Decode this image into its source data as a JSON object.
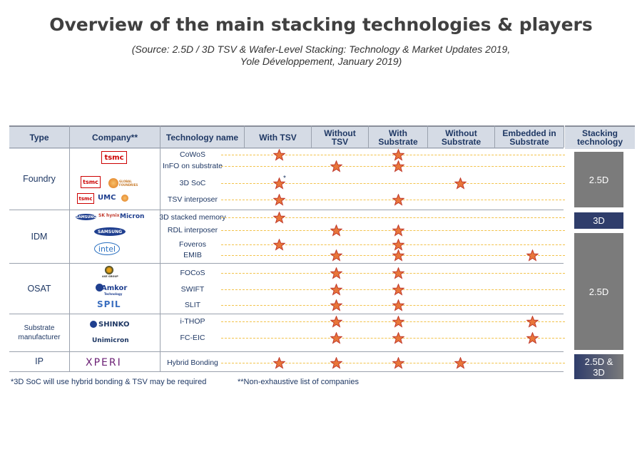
{
  "title": "Overview of the main stacking technologies & players",
  "source": {
    "line1": "(Source: 2.5D / 3D TSV & Wafer-Level Stacking: Technology & Market Updates 2019,",
    "line2": "Yole Développement, January 2019)"
  },
  "headers": {
    "type": "Type",
    "company": "Company**",
    "technology": "Technology name",
    "with_tsv": "With TSV",
    "without_tsv_1": "Without",
    "without_tsv_2": "TSV",
    "with_sub_1": "With",
    "with_sub_2": "Substrate",
    "without_sub_1": "Without",
    "without_sub_2": "Substrate",
    "embedded_1": "Embedded in",
    "embedded_2": "Substrate",
    "stacking_1": "Stacking",
    "stacking_2": "technology"
  },
  "types": {
    "foundry": "Foundry",
    "idm": "IDM",
    "osat": "OSAT",
    "substrate_1": "Substrate",
    "substrate_2": "manufacturer",
    "ip": "IP"
  },
  "companies": {
    "tsmc": "tsmc",
    "globalfoundries": "GLOBAL FOUNDRIES",
    "umc": "UMC",
    "samsung": "SAMSUNG",
    "sk_hynix": "SK hynix",
    "micron": "Micron",
    "intel": "intel",
    "ase": "ASE GROUP",
    "amkor": "Amkor",
    "amkor_sub": "Technology",
    "spil": "SPIL",
    "shinko": "SHINKO",
    "unimicron": "Unimicron",
    "xperi": "XPERI"
  },
  "technologies": [
    {
      "name": "CoWoS",
      "stars": [
        1,
        0,
        1,
        0,
        0
      ]
    },
    {
      "name": "InFO on substrate",
      "stars": [
        0,
        1,
        1,
        0,
        0
      ]
    },
    {
      "name": "3D SoC",
      "stars": [
        1,
        0,
        0,
        1,
        0
      ]
    },
    {
      "name": "TSV interposer",
      "stars": [
        1,
        0,
        1,
        0,
        0
      ]
    },
    {
      "name": "3D stacked memory",
      "stars": [
        1,
        0,
        0,
        0,
        0
      ]
    },
    {
      "name": "RDL interposer",
      "stars": [
        0,
        1,
        1,
        0,
        0
      ]
    },
    {
      "name": "Foveros",
      "stars": [
        1,
        0,
        1,
        0,
        0
      ]
    },
    {
      "name": "EMIB",
      "stars": [
        0,
        1,
        1,
        0,
        1
      ]
    },
    {
      "name": "FOCoS",
      "stars": [
        0,
        1,
        1,
        0,
        0
      ]
    },
    {
      "name": "SWIFT",
      "stars": [
        0,
        1,
        1,
        0,
        0
      ]
    },
    {
      "name": "SLIT",
      "stars": [
        0,
        1,
        1,
        0,
        0
      ]
    },
    {
      "name": "i-THOP",
      "stars": [
        0,
        1,
        1,
        0,
        1
      ]
    },
    {
      "name": "FC-EIC",
      "stars": [
        0,
        1,
        1,
        0,
        1
      ]
    },
    {
      "name": "Hybrid Bonding",
      "stars": [
        1,
        1,
        1,
        1,
        0
      ]
    }
  ],
  "soc_asterisk": "*",
  "stacking": {
    "box1": "2.5D",
    "box2": "3D",
    "box3": "2.5D",
    "box4_1": "2.5D &",
    "box4_2": "3D"
  },
  "notes": {
    "note1": "*3D SoC will use hybrid bonding & TSV may be required",
    "note2": "**Non-exhaustive list of companies"
  },
  "colors": {
    "star_fill": "#e8763a",
    "star_stroke": "#c0392b",
    "dash": "#f2c24a",
    "navy": "#1f3864",
    "grey_box": "#7b7b7b",
    "dark_box": "#2f3d6b"
  }
}
